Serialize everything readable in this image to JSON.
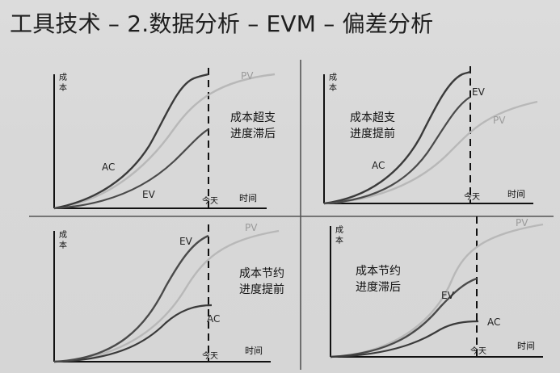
{
  "title": "工具技术 – 2.数据分析 – EVM – 偏差分析",
  "axis_labels": {
    "y": "成\n本",
    "x": "时间",
    "today": "今天"
  },
  "panels": [
    {
      "caption_line1": "成本超支",
      "caption_line2": "进度滞后",
      "labels": {
        "pv": "PV",
        "ac": "AC",
        "ev": "EV"
      }
    },
    {
      "caption_line1": "成本超支",
      "caption_line2": "进度提前",
      "labels": {
        "pv": "PV",
        "ac": "AC",
        "ev": "EV"
      }
    },
    {
      "caption_line1": "成本节约",
      "caption_line2": "进度提前",
      "labels": {
        "pv": "PV",
        "ac": "AC",
        "ev": "EV"
      }
    },
    {
      "caption_line1": "成本节约",
      "caption_line2": "进度滞后",
      "labels": {
        "pv": "PV",
        "ac": "AC",
        "ev": "EV"
      }
    }
  ],
  "colors": {
    "pv": "#b8b8b8",
    "ac": "#3a3a3a",
    "ev": "#4a4a4a",
    "axis": "#111111",
    "divider": "#555555"
  }
}
